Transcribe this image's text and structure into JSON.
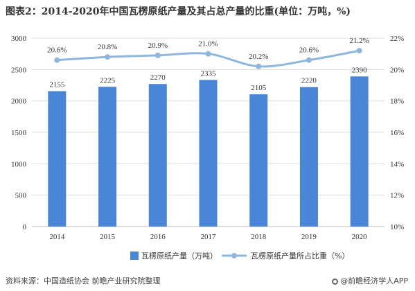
{
  "title": "图表2：2014-2020年中国瓦楞原纸产量及其占总产量的比重(单位：万吨，%)",
  "source_text": "资料来源：中国造纸协会 前瞻产业研究院整理",
  "brand_text": "@前瞻经济学人APP",
  "colors": {
    "bar": "#4a86d8",
    "line": "#8fb6dc",
    "grid": "#dddddd",
    "text": "#333333"
  },
  "chart_data": {
    "type": "bar",
    "categories": [
      "2014",
      "2015",
      "2016",
      "2017",
      "2018",
      "2019",
      "2020"
    ],
    "series": [
      {
        "name": "瓦楞原纸产量（万吨）",
        "type": "bar",
        "axis": "left",
        "values": [
          2155,
          2225,
          2270,
          2335,
          2105,
          2220,
          2390
        ],
        "labels": [
          "2155",
          "2225",
          "2270",
          "2335",
          "2105",
          "2220",
          "2390"
        ]
      },
      {
        "name": "瓦楞原纸产量所占比重（%）",
        "type": "line",
        "axis": "right",
        "values": [
          20.6,
          20.8,
          20.9,
          21.0,
          20.2,
          20.6,
          21.2
        ],
        "labels": [
          "20.6%",
          "20.8%",
          "20.9%",
          "21.0%",
          "20.2%",
          "20.6%",
          "21.2%"
        ]
      }
    ],
    "y_left": {
      "min": 0,
      "max": 3000,
      "ticks": [
        "0",
        "500",
        "1000",
        "1500",
        "2000",
        "2500",
        "3000"
      ]
    },
    "y_right": {
      "min": 10,
      "max": 22,
      "ticks": [
        "10%",
        "12%",
        "14%",
        "16%",
        "18%",
        "20%",
        "22%"
      ]
    },
    "grid": true,
    "legend_position": "bottom"
  }
}
